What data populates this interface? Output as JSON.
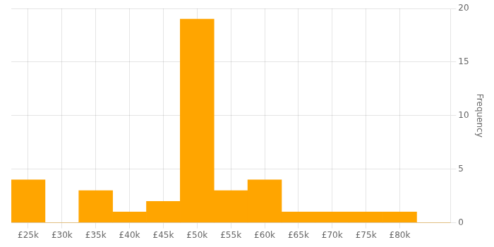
{
  "chart_data": {
    "type": "histogram",
    "bins": [
      22500,
      27500,
      32500,
      37500,
      42500,
      47500,
      52500,
      57500,
      62500,
      67500,
      72500,
      77500,
      82500,
      87500
    ],
    "values": [
      4,
      0,
      3,
      1,
      2,
      19,
      3,
      4,
      1,
      1,
      1,
      1,
      0
    ],
    "color": "#FFA500",
    "xlim": [
      22500,
      87500
    ],
    "xticks": [
      {
        "value": 25000,
        "label": "£25k"
      },
      {
        "value": 30000,
        "label": "£30k"
      },
      {
        "value": 35000,
        "label": "£35k"
      },
      {
        "value": 40000,
        "label": "£40k"
      },
      {
        "value": 45000,
        "label": "£45k"
      },
      {
        "value": 50000,
        "label": "£50k"
      },
      {
        "value": 55000,
        "label": "£55k"
      },
      {
        "value": 60000,
        "label": "£60k"
      },
      {
        "value": 65000,
        "label": "£65k"
      },
      {
        "value": 70000,
        "label": "£70k"
      },
      {
        "value": 75000,
        "label": "£75k"
      },
      {
        "value": 80000,
        "label": "£80k"
      }
    ],
    "ylim": [
      0,
      20
    ],
    "yticks": [
      0,
      5,
      10,
      15,
      20
    ],
    "ylabel": "Frequency",
    "grid": true
  }
}
